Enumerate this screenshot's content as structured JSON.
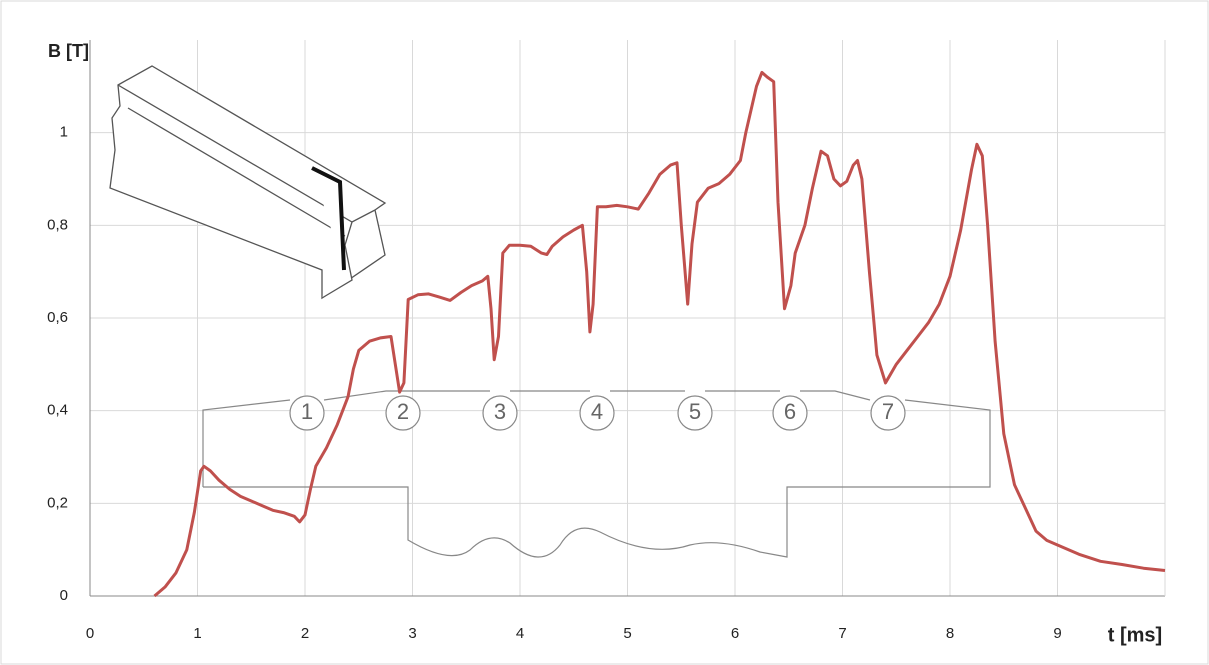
{
  "chart_data": {
    "type": "line",
    "y_label": "B [T]",
    "x_label": "t [ms]",
    "xlim": [
      0,
      10
    ],
    "ylim": [
      0,
      1.2
    ],
    "xticks": [
      0,
      1,
      2,
      3,
      4,
      5,
      6,
      7,
      8,
      9
    ],
    "yticks": [
      0,
      {
        "value": 0.2,
        "label": "0,2"
      },
      {
        "value": 0.4,
        "label": "0,4"
      },
      {
        "value": 0.6,
        "label": "0,6"
      },
      {
        "value": 0.8,
        "label": "0,8"
      },
      1
    ],
    "grid": true,
    "annotations": [
      "1",
      "2",
      "3",
      "4",
      "5",
      "6",
      "7"
    ],
    "series": [
      {
        "color": "#c0504d",
        "x": [
          0.6,
          0.7,
          0.8,
          0.9,
          0.97,
          1.03,
          1.06,
          1.12,
          1.2,
          1.3,
          1.4,
          1.5,
          1.6,
          1.7,
          1.8,
          1.9,
          1.95,
          2.0,
          2.05,
          2.1,
          2.2,
          2.3,
          2.4,
          2.45,
          2.5,
          2.6,
          2.7,
          2.8,
          2.84,
          2.88,
          2.92,
          2.96,
          3.05,
          3.15,
          3.25,
          3.35,
          3.45,
          3.55,
          3.65,
          3.7,
          3.73,
          3.76,
          3.8,
          3.84,
          3.9,
          4.0,
          4.1,
          4.2,
          4.25,
          4.3,
          4.4,
          4.5,
          4.58,
          4.62,
          4.65,
          4.68,
          4.72,
          4.8,
          4.9,
          5.0,
          5.1,
          5.2,
          5.3,
          5.4,
          5.46,
          5.5,
          5.56,
          5.6,
          5.65,
          5.75,
          5.85,
          5.95,
          6.05,
          6.1,
          6.2,
          6.25,
          6.3,
          6.36,
          6.4,
          6.46,
          6.52,
          6.56,
          6.65,
          6.72,
          6.8,
          6.86,
          6.92,
          6.98,
          7.04,
          7.1,
          7.14,
          7.18,
          7.25,
          7.32,
          7.4,
          7.5,
          7.6,
          7.7,
          7.8,
          7.9,
          8.0,
          8.1,
          8.2,
          8.25,
          8.3,
          8.35,
          8.42,
          8.5,
          8.6,
          8.7,
          8.8,
          8.9,
          9.0,
          9.2,
          9.4,
          9.6,
          9.8,
          10
        ],
        "values": [
          0,
          0.02,
          0.05,
          0.1,
          0.18,
          0.27,
          0.28,
          0.27,
          0.25,
          0.23,
          0.215,
          0.205,
          0.195,
          0.185,
          0.18,
          0.172,
          0.16,
          0.175,
          0.23,
          0.28,
          0.32,
          0.37,
          0.43,
          0.49,
          0.53,
          0.55,
          0.557,
          0.56,
          0.5,
          0.44,
          0.46,
          0.64,
          0.65,
          0.652,
          0.645,
          0.638,
          0.655,
          0.67,
          0.68,
          0.69,
          0.62,
          0.51,
          0.56,
          0.74,
          0.757,
          0.757,
          0.755,
          0.74,
          0.737,
          0.755,
          0.775,
          0.79,
          0.8,
          0.7,
          0.57,
          0.63,
          0.84,
          0.84,
          0.843,
          0.84,
          0.835,
          0.87,
          0.91,
          0.93,
          0.935,
          0.8,
          0.63,
          0.76,
          0.85,
          0.88,
          0.89,
          0.91,
          0.94,
          1.0,
          1.1,
          1.13,
          1.12,
          1.11,
          0.85,
          0.62,
          0.67,
          0.74,
          0.8,
          0.88,
          0.96,
          0.95,
          0.9,
          0.885,
          0.895,
          0.93,
          0.94,
          0.9,
          0.7,
          0.52,
          0.46,
          0.5,
          0.53,
          0.56,
          0.59,
          0.63,
          0.69,
          0.79,
          0.92,
          0.975,
          0.95,
          0.8,
          0.55,
          0.35,
          0.24,
          0.19,
          0.14,
          0.12,
          0.11,
          0.09,
          0.075,
          0.068,
          0.06,
          0.055
        ]
      }
    ]
  }
}
